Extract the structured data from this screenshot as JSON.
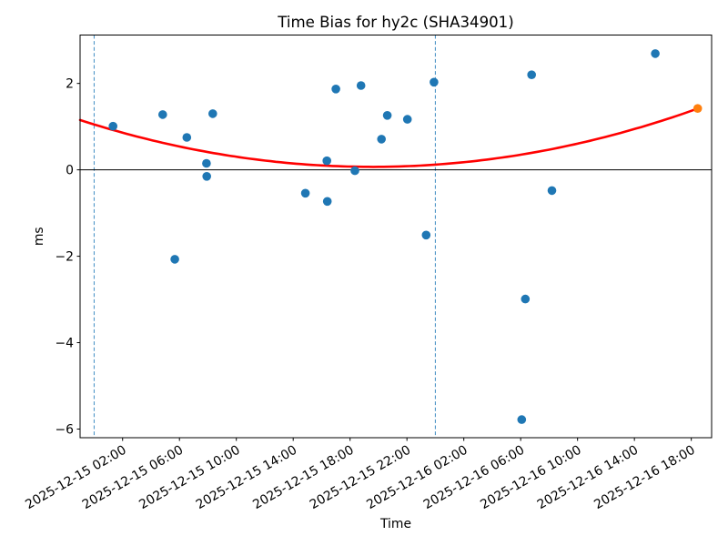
{
  "figure": {
    "title": "Time Bias for hy2c (SHA34901)"
  },
  "chart_data": {
    "type": "scatter",
    "title": "Time Bias for hy2c (SHA34901)",
    "xlabel": "Time",
    "ylabel": "ms",
    "x_axis_unit": "hours since 2025-12-15 00:00",
    "xlim": [
      -0.99,
      43.43
    ],
    "ylim": [
      -6.2,
      3.12
    ],
    "grid": false,
    "legend_position": "none",
    "xticks": {
      "t": [
        2,
        6,
        10,
        14,
        18,
        22,
        26,
        30,
        34,
        38,
        42
      ],
      "labels": [
        "2025-12-15 02:00",
        "2025-12-15 06:00",
        "2025-12-15 10:00",
        "2025-12-15 14:00",
        "2025-12-15 18:00",
        "2025-12-15 22:00",
        "2025-12-16 02:00",
        "2025-12-16 06:00",
        "2025-12-16 10:00",
        "2025-12-16 14:00",
        "2025-12-16 18:00"
      ]
    },
    "yticks": {
      "v": [
        2,
        0,
        -2,
        -4,
        -6
      ],
      "labels": [
        "2",
        "0",
        "−2",
        "−4",
        "−6"
      ]
    },
    "series": [
      {
        "name": "bias-measurements",
        "color": "#1f77b4",
        "marker": "circle",
        "points": [
          [
            1.33,
            1.01
          ],
          [
            4.82,
            1.28
          ],
          [
            5.67,
            -2.07
          ],
          [
            6.52,
            0.75
          ],
          [
            7.9,
            0.15
          ],
          [
            7.92,
            -0.15
          ],
          [
            8.34,
            1.3
          ],
          [
            14.86,
            -0.54
          ],
          [
            16.37,
            0.21
          ],
          [
            16.4,
            -0.73
          ],
          [
            17.0,
            1.87
          ],
          [
            18.34,
            -0.02
          ],
          [
            18.77,
            1.95
          ],
          [
            20.21,
            0.71
          ],
          [
            20.62,
            1.26
          ],
          [
            22.03,
            1.17
          ],
          [
            23.35,
            -1.51
          ],
          [
            23.9,
            2.03
          ],
          [
            30.07,
            -5.78
          ],
          [
            30.33,
            -2.99
          ],
          [
            30.77,
            2.2
          ],
          [
            32.2,
            -0.48
          ],
          [
            39.47,
            2.69
          ]
        ]
      },
      {
        "name": "predicted-bias-point",
        "color": "#ff7f0e",
        "marker": "circle",
        "points": [
          [
            42.45,
            1.42
          ]
        ]
      }
    ],
    "fit_curve": {
      "name": "quadratic-fit",
      "color": "#ff0000",
      "quadratic_coeffs": [
        0.002569,
        -0.1004,
        1.05
      ],
      "t_domain": [
        -0.99,
        42.45
      ]
    },
    "vlines": {
      "t": [
        0,
        24
      ],
      "color": "#4f96c8",
      "style": "dashed"
    },
    "hline": {
      "v": 0,
      "color": "#000000"
    }
  }
}
